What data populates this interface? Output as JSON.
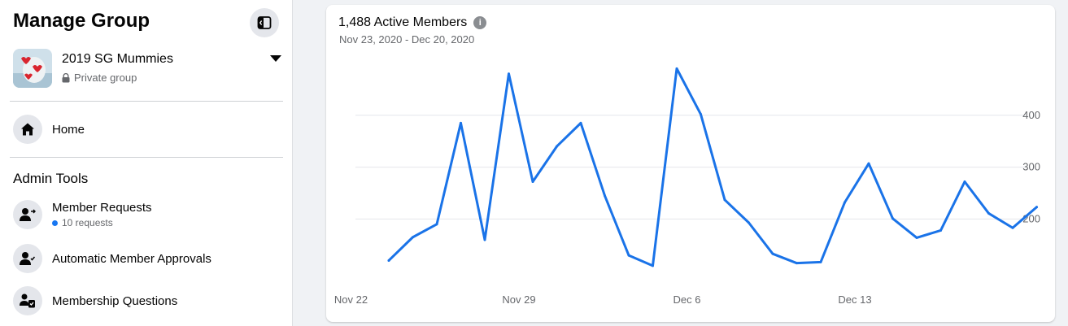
{
  "sidebar": {
    "title": "Manage Group",
    "collapse_icon": "sidebar-collapse-icon",
    "group": {
      "name": "2019 SG Mummies",
      "privacy": "Private group",
      "privacy_icon": "lock-icon"
    },
    "home": {
      "label": "Home",
      "icon": "home-icon"
    },
    "admin_tools": {
      "heading": "Admin Tools",
      "items": [
        {
          "label": "Member Requests",
          "sub": "10 requests",
          "icon": "member-requests-icon"
        },
        {
          "label": "Automatic Member Approvals",
          "icon": "member-approvals-icon"
        },
        {
          "label": "Membership Questions",
          "icon": "membership-questions-icon"
        }
      ]
    }
  },
  "card": {
    "title": "1,488 Active Members",
    "date_range": "Nov 23, 2020 - Dec 20, 2020",
    "info_icon": "info-icon"
  },
  "colors": {
    "accent": "#1877f2",
    "line": "#1a73e8"
  },
  "chart_data": {
    "type": "line",
    "title": "1,488 Active Members",
    "subtitle": "Nov 23, 2020 - Dec 20, 2020",
    "x_tick_labels": [
      "Nov 22",
      "Nov 29",
      "Dec 6",
      "Dec 13"
    ],
    "y_tick_labels": [
      "200",
      "300",
      "400"
    ],
    "ylim": [
      80,
      500
    ],
    "grid": true,
    "x": [
      "Nov 23",
      "Nov 24",
      "Nov 25",
      "Nov 26",
      "Nov 27",
      "Nov 28",
      "Nov 29",
      "Nov 30",
      "Dec 1",
      "Dec 2",
      "Dec 3",
      "Dec 4",
      "Dec 5",
      "Dec 6",
      "Dec 7",
      "Dec 8",
      "Dec 9",
      "Dec 10",
      "Dec 11",
      "Dec 12",
      "Dec 13",
      "Dec 14",
      "Dec 15",
      "Dec 16",
      "Dec 17",
      "Dec 18",
      "Dec 19",
      "Dec 20"
    ],
    "values": [
      120,
      165,
      190,
      385,
      160,
      480,
      272,
      340,
      385,
      245,
      130,
      110,
      490,
      402,
      237,
      193,
      133,
      115,
      117,
      232,
      307,
      201,
      164,
      178,
      272,
      211,
      183,
      223
    ]
  }
}
